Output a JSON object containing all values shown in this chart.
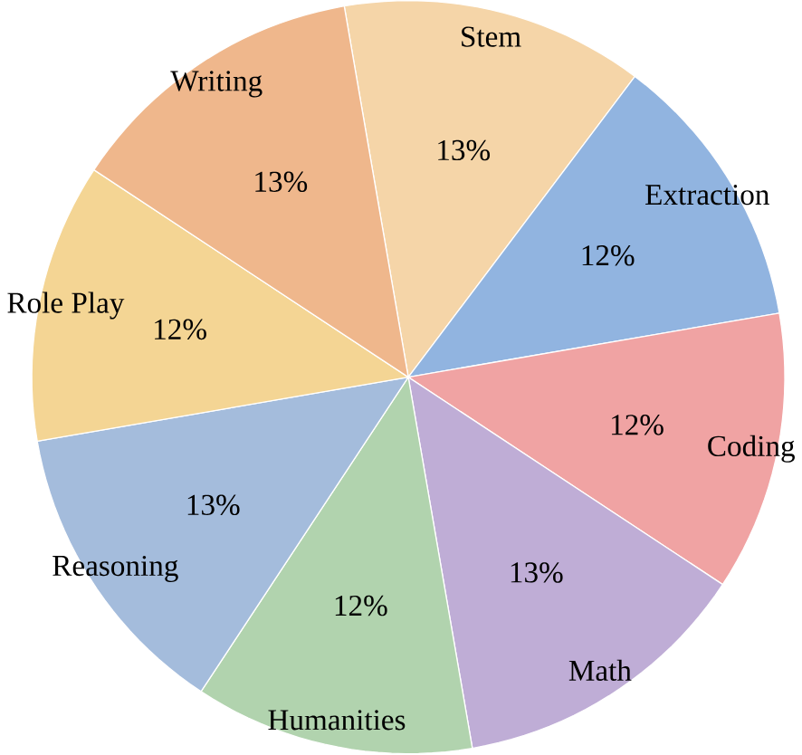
{
  "chart_data": {
    "type": "pie",
    "categories": [
      "Stem",
      "Extraction",
      "Coding",
      "Math",
      "Humanities",
      "Reasoning",
      "Role Play",
      "Writing"
    ],
    "values": [
      13,
      12,
      12,
      13,
      12,
      13,
      12,
      13
    ],
    "value_labels": [
      "13%",
      "12%",
      "12%",
      "13%",
      "12%",
      "13%",
      "12%",
      "13%"
    ],
    "colors": [
      "#f5d5a8",
      "#91b4e0",
      "#f0a3a3",
      "#bfadd6",
      "#b1d3ae",
      "#a4bcdc",
      "#f4d594",
      "#efb78c"
    ]
  }
}
